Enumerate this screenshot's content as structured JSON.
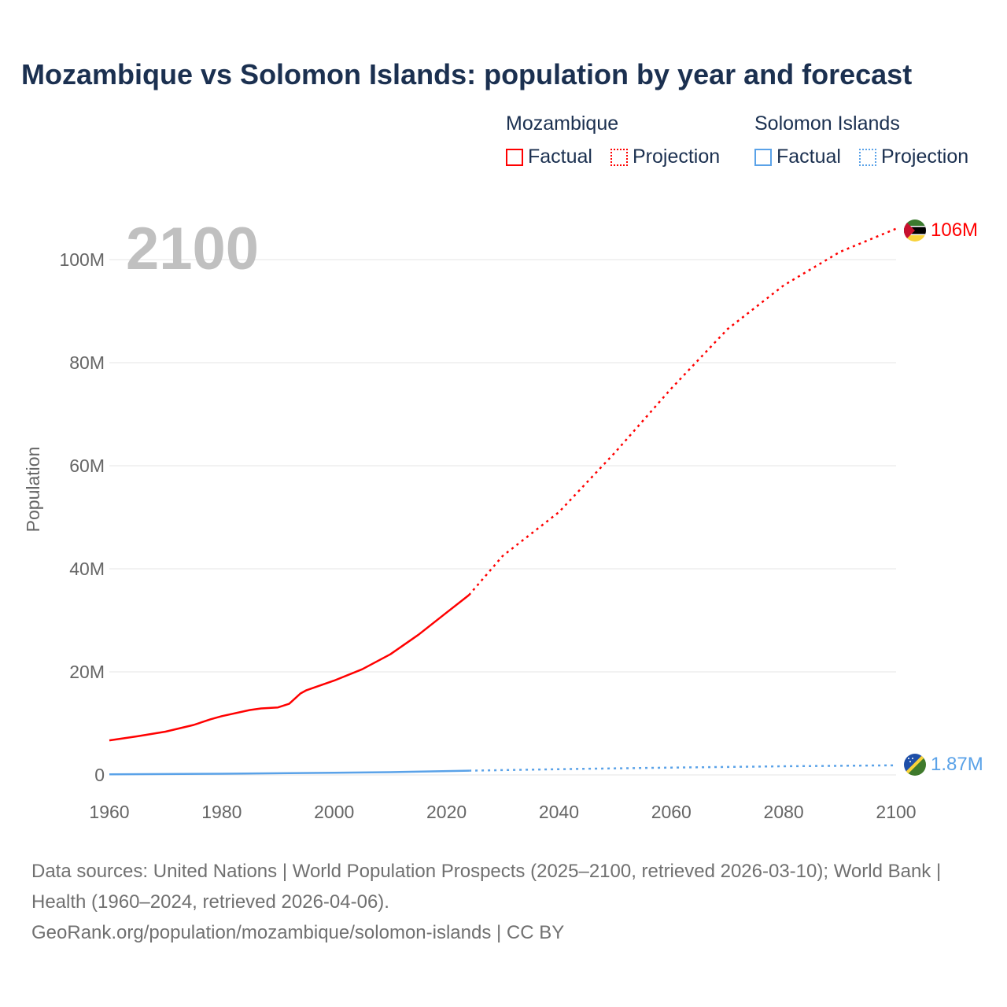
{
  "title": "Mozambique vs Solomon Islands: population by year and forecast",
  "legend": {
    "groups": [
      {
        "name": "Mozambique",
        "factual": "Factual",
        "projection": "Projection",
        "color": "#ff0000"
      },
      {
        "name": "Solomon Islands",
        "factual": "Factual",
        "projection": "Projection",
        "color": "#5aa2e8"
      }
    ]
  },
  "year_label": "2100",
  "source_line1": "Data sources: United Nations | World Population Prospects (2025–2100, retrieved 2026-03-10); World Bank | Health (1960–2024, retrieved 2026-04-06).",
  "source_line2": "GeoRank.org/population/mozambique/solomon-islands | CC BY",
  "chart_data": {
    "type": "line",
    "title": "Mozambique vs Solomon Islands: population by year and forecast",
    "xlabel": "",
    "ylabel": "Population",
    "xlim": [
      1960,
      2100
    ],
    "ylim": [
      0,
      100000000
    ],
    "x_ticks": [
      "1960",
      "1980",
      "2000",
      "2020",
      "2040",
      "2060",
      "2080",
      "2100"
    ],
    "y_ticks": [
      "0",
      "20M",
      "40M",
      "60M",
      "80M",
      "100M"
    ],
    "grid": true,
    "series": [
      {
        "name": "Mozambique Factual",
        "color": "#ff0000",
        "dashed": false,
        "x": [
          1960,
          1965,
          1970,
          1975,
          1978,
          1980,
          1985,
          1987,
          1990,
          1992,
          1994,
          1995,
          2000,
          2005,
          2010,
          2015,
          2020,
          2024
        ],
        "y": [
          6.7,
          7.5,
          8.4,
          9.7,
          10.8,
          11.4,
          12.6,
          12.9,
          13.1,
          13.8,
          15.8,
          16.4,
          18.3,
          20.5,
          23.4,
          27.2,
          31.5,
          34.9
        ]
      },
      {
        "name": "Mozambique Projection",
        "color": "#ff0000",
        "dashed": true,
        "x": [
          2024,
          2030,
          2040,
          2050,
          2060,
          2070,
          2080,
          2090,
          2100
        ],
        "y": [
          34.9,
          42.5,
          51,
          62.6,
          75,
          86.5,
          95,
          101.5,
          106
        ]
      },
      {
        "name": "Solomon Islands Factual",
        "color": "#5aa2e8",
        "dashed": false,
        "x": [
          1960,
          1980,
          2000,
          2010,
          2024
        ],
        "y": [
          0.12,
          0.23,
          0.41,
          0.53,
          0.82
        ]
      },
      {
        "name": "Solomon Islands Projection",
        "color": "#5aa2e8",
        "dashed": true,
        "x": [
          2024,
          2040,
          2060,
          2080,
          2100
        ],
        "y": [
          0.82,
          1.12,
          1.42,
          1.68,
          1.87
        ]
      }
    ],
    "y_unit": "millions",
    "end_labels": [
      {
        "country": "Mozambique",
        "text": "106M",
        "color": "#ff0000"
      },
      {
        "country": "Solomon Islands",
        "text": "1.87M",
        "color": "#5aa2e8"
      }
    ]
  }
}
